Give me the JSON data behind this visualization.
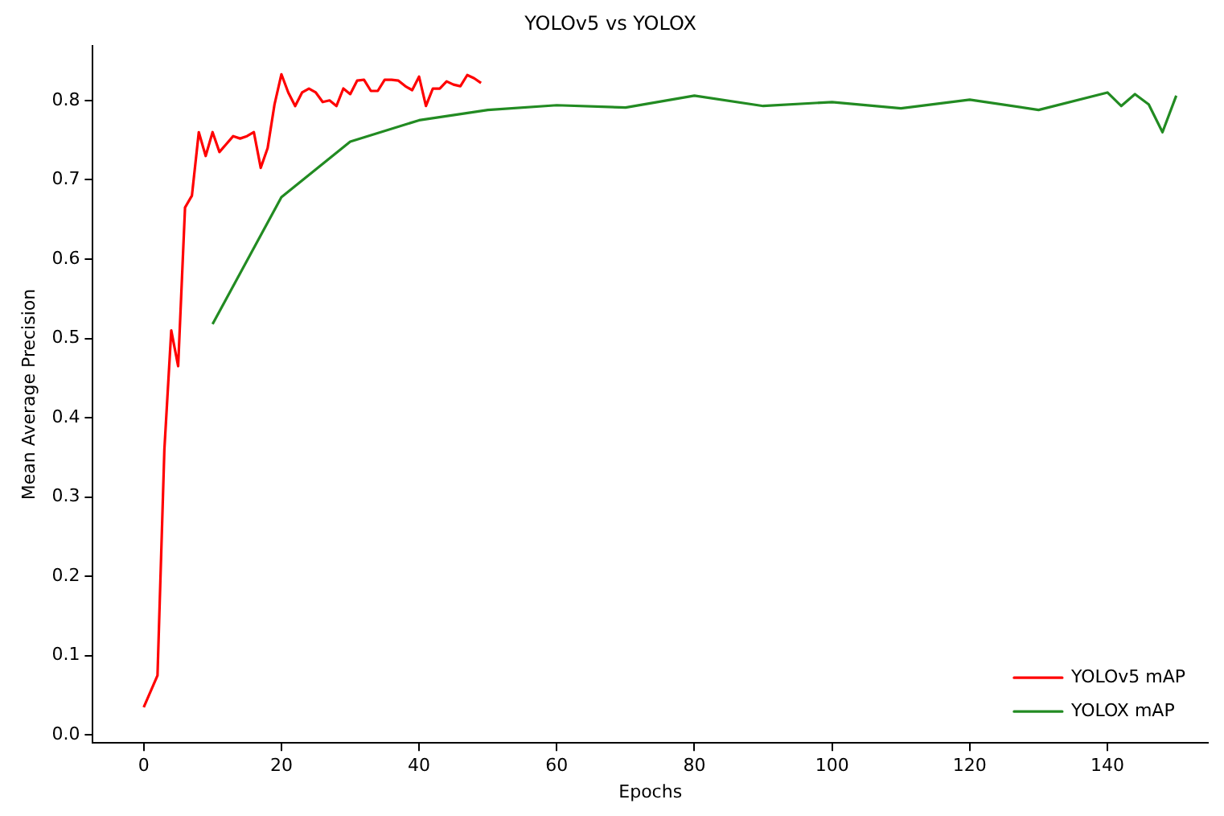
{
  "chart_data": {
    "type": "line",
    "title": "YOLOv5 vs YOLOX",
    "xlabel": "Epochs",
    "ylabel": "Mean Average Precision",
    "xlim": [
      -7.4,
      154.6
    ],
    "xticks": [
      0,
      20,
      40,
      60,
      80,
      100,
      120,
      140
    ],
    "ylim": [
      -0.01,
      0.869
    ],
    "yticks": [
      {
        "value": 0,
        "label": "0.0"
      },
      {
        "value": 0.1,
        "label": "0.1"
      },
      {
        "value": 0.2,
        "label": "0.2"
      },
      {
        "value": 0.3,
        "label": "0.3"
      },
      {
        "value": 0.4,
        "label": "0.4"
      },
      {
        "value": 0.5,
        "label": "0.5"
      },
      {
        "value": 0.6,
        "label": "0.6"
      },
      {
        "value": 0.7,
        "label": "0.7"
      },
      {
        "value": 0.8,
        "label": "0.8"
      }
    ],
    "legend": "bottom right",
    "grid": false,
    "marker": "none",
    "line_style": "solid",
    "series": [
      {
        "name": "YOLOv5 mAP",
        "color": "#ff0000",
        "x": [
          0,
          1,
          2,
          3,
          4,
          5,
          6,
          7,
          8,
          9,
          10,
          11,
          12,
          13,
          14,
          15,
          16,
          17,
          18,
          19,
          20,
          21,
          22,
          23,
          24,
          25,
          26,
          27,
          28,
          29,
          30,
          31,
          32,
          33,
          34,
          35,
          36,
          37,
          38,
          39,
          40,
          41,
          42,
          43,
          44,
          45,
          46,
          47,
          48,
          49
        ],
        "values": [
          0.035,
          0.055,
          0.075,
          0.36,
          0.51,
          0.465,
          0.665,
          0.68,
          0.76,
          0.73,
          0.76,
          0.735,
          0.745,
          0.755,
          0.752,
          0.755,
          0.76,
          0.715,
          0.74,
          0.795,
          0.833,
          0.81,
          0.793,
          0.81,
          0.815,
          0.81,
          0.798,
          0.8,
          0.793,
          0.815,
          0.808,
          0.825,
          0.826,
          0.812,
          0.812,
          0.826,
          0.826,
          0.825,
          0.818,
          0.813,
          0.83,
          0.793,
          0.815,
          0.815,
          0.824,
          0.82,
          0.818,
          0.832,
          0.828,
          0.822
        ]
      },
      {
        "name": "YOLOX mAP",
        "color": "#228b22",
        "x": [
          10,
          20,
          30,
          40,
          50,
          60,
          70,
          80,
          90,
          100,
          110,
          120,
          130,
          140,
          142,
          144,
          146,
          148,
          150
        ],
        "values": [
          0.518,
          0.678,
          0.748,
          0.775,
          0.788,
          0.794,
          0.791,
          0.806,
          0.793,
          0.798,
          0.79,
          0.801,
          0.788,
          0.81,
          0.793,
          0.808,
          0.795,
          0.76,
          0.806
        ]
      }
    ]
  }
}
